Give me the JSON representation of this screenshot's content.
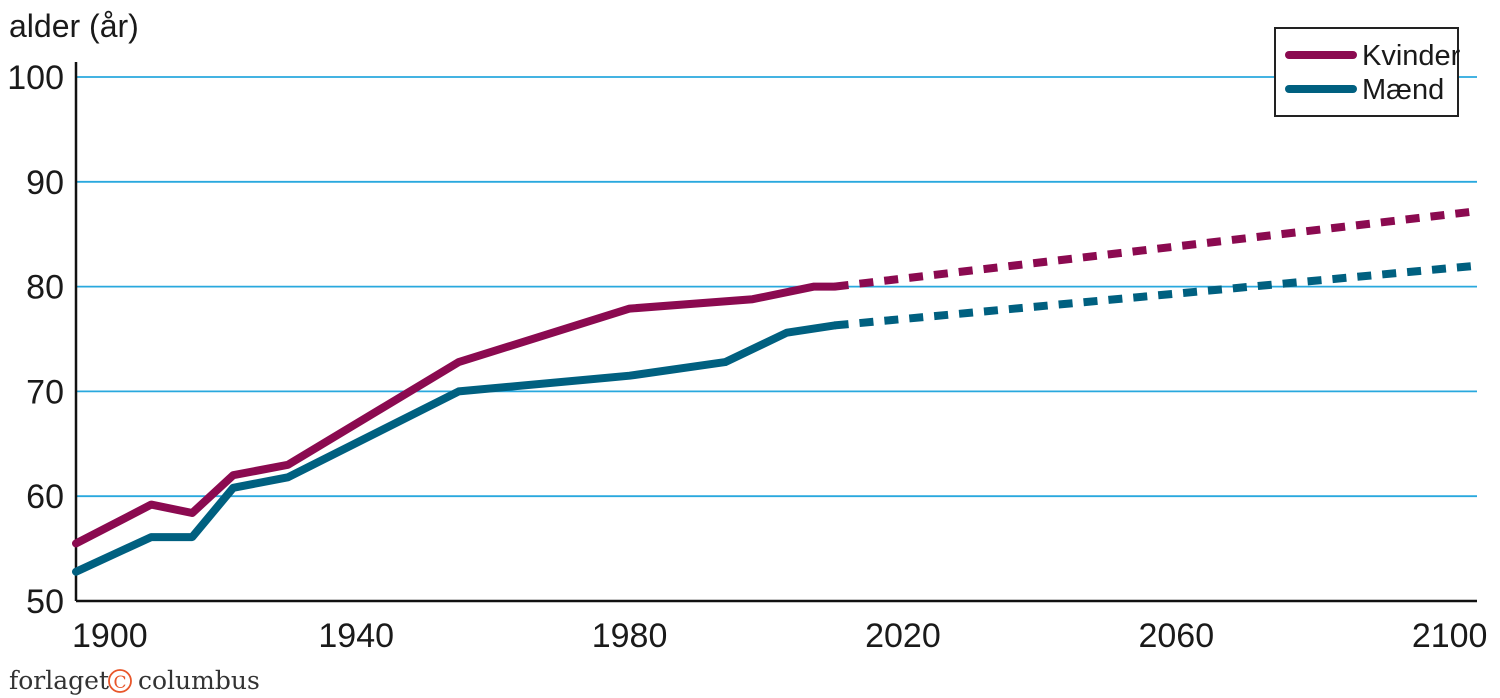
{
  "chart_data": {
    "type": "line",
    "ylabel": "alder (år)",
    "xlim": [
      1899,
      2104
    ],
    "ylim": [
      50,
      100
    ],
    "yticks": [
      50,
      60,
      70,
      80,
      90,
      100
    ],
    "xticks": [
      1900,
      1940,
      1980,
      2020,
      2060,
      2100
    ],
    "grid": true,
    "legend_position": "top-right",
    "series": [
      {
        "name": "Kvinder",
        "color": "#8b0a50",
        "values": [
          [
            1899,
            55.5
          ],
          [
            1910,
            59.2
          ],
          [
            1916,
            58.4
          ],
          [
            1922,
            62.0
          ],
          [
            1930,
            63.0
          ],
          [
            1955,
            72.8
          ],
          [
            1980,
            77.9
          ],
          [
            1998,
            78.8
          ],
          [
            2007,
            80.0
          ],
          [
            2010,
            80.0
          ]
        ],
        "projection": [
          [
            2010,
            80.0
          ],
          [
            2104,
            87.2
          ]
        ]
      },
      {
        "name": "Mænd",
        "color": "#006080",
        "values": [
          [
            1899,
            52.8
          ],
          [
            1910,
            56.1
          ],
          [
            1916,
            56.1
          ],
          [
            1922,
            60.8
          ],
          [
            1930,
            61.8
          ],
          [
            1955,
            70.0
          ],
          [
            1980,
            71.5
          ],
          [
            1994,
            72.8
          ],
          [
            2003,
            75.6
          ],
          [
            2010,
            76.3
          ]
        ],
        "projection": [
          [
            2010,
            76.3
          ],
          [
            2104,
            82.0
          ]
        ]
      }
    ]
  },
  "branding": {
    "left": "forlaget",
    "mark": "C",
    "right": "columbus",
    "mark_color": "#e8562a"
  }
}
